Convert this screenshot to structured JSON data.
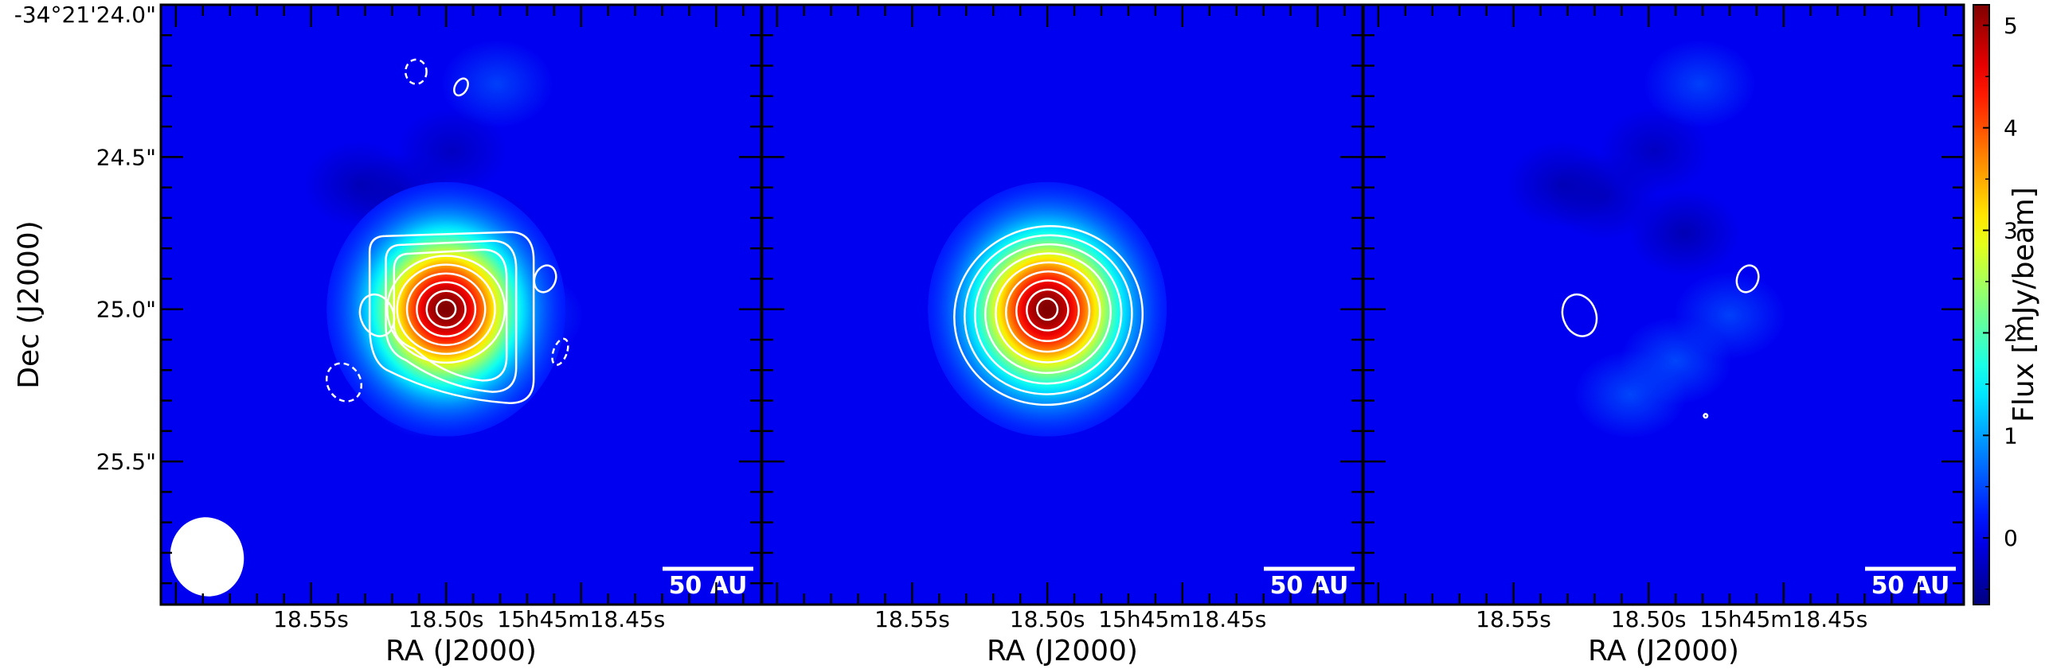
{
  "chart_data": {
    "type": "heatmap",
    "panels": [
      {
        "name": "",
        "source": {
          "ra_offset": 0.0,
          "dec_offset": 0.0,
          "peak": 5.2
        },
        "blobs": [
          {
            "ra": 0.06,
            "dec": -0.28,
            "amp": 0.55
          },
          {
            "ra": -0.09,
            "dec": -0.17,
            "amp": 0.55
          },
          {
            "ra": -0.27,
            "dec": -0.02,
            "amp": 0.5
          },
          {
            "ra": -0.12,
            "dec": 0.25,
            "amp": -0.45
          },
          {
            "ra": 0.29,
            "dec": 0.41,
            "amp": -0.4
          },
          {
            "ra": -0.17,
            "dec": 0.74,
            "amp": 0.5
          },
          {
            "ra": 0.15,
            "dec": 0.37,
            "amp": -0.35
          },
          {
            "ra": -0.02,
            "dec": 0.52,
            "amp": -0.35
          }
        ],
        "contours": [
          {
            "ra": 0.23,
            "dec": -0.02,
            "w": 0.11,
            "h": 0.14,
            "rot": -20,
            "dashed": false
          },
          {
            "ra": -0.33,
            "dec": 0.1,
            "w": 0.07,
            "h": 0.09,
            "rot": 20,
            "dashed": false
          },
          {
            "ra": 0.34,
            "dec": -0.24,
            "w": 0.11,
            "h": 0.13,
            "rot": -30,
            "dashed": true
          },
          {
            "ra": -0.38,
            "dec": -0.14,
            "w": 0.045,
            "h": 0.09,
            "rot": 20,
            "dashed": true
          },
          {
            "ra": 0.1,
            "dec": 0.78,
            "w": 0.07,
            "h": 0.08,
            "rot": 0,
            "dashed": true
          },
          {
            "ra": -0.05,
            "dec": 0.73,
            "w": 0.04,
            "h": 0.06,
            "rot": 30,
            "dashed": false
          }
        ],
        "source_contours": true,
        "beam": true
      },
      {
        "name": "",
        "source": {
          "ra_offset": 0.0,
          "dec_offset": 0.0,
          "peak": 5.2
        },
        "blobs": [],
        "contours": [],
        "source_contours": true,
        "beam": false
      },
      {
        "name": "",
        "source": null,
        "blobs": [
          {
            "ra": 0.06,
            "dec": -0.28,
            "amp": 0.55
          },
          {
            "ra": -0.09,
            "dec": -0.17,
            "amp": 0.55
          },
          {
            "ra": -0.27,
            "dec": -0.02,
            "amp": 0.5
          },
          {
            "ra": -0.12,
            "dec": 0.25,
            "amp": -0.45
          },
          {
            "ra": 0.29,
            "dec": 0.41,
            "amp": -0.4
          },
          {
            "ra": -0.17,
            "dec": 0.74,
            "amp": 0.5
          },
          {
            "ra": 0.15,
            "dec": 0.37,
            "amp": -0.35
          },
          {
            "ra": -0.02,
            "dec": 0.52,
            "amp": -0.35
          }
        ],
        "contours": [
          {
            "ra": 0.23,
            "dec": -0.02,
            "w": 0.11,
            "h": 0.14,
            "rot": -20,
            "dashed": false
          },
          {
            "ra": -0.33,
            "dec": 0.1,
            "w": 0.07,
            "h": 0.09,
            "rot": 20,
            "dashed": false
          },
          {
            "ra": -0.19,
            "dec": -0.35,
            "w": 0.012,
            "h": 0.012,
            "rot": 0,
            "dashed": false
          }
        ],
        "source_contours": false,
        "beam": false
      }
    ],
    "ra_ticks": {
      "labels": [
        "18.55s",
        "18.50s",
        "15h45m18.45s"
      ],
      "offsets_arcsec": [
        0.45,
        0.0,
        -0.45
      ]
    },
    "dec_ticks": {
      "labels": [
        "-34°21'24.0\"",
        "24.5\"",
        "25.0\"",
        "25.5\""
      ],
      "offsets_arcsec": [
        1.0,
        0.5,
        0.0,
        -0.5
      ]
    },
    "xlim_arcsec": [
      0.95,
      -1.05
    ],
    "ylim_arcsec": [
      1.0,
      -0.97
    ],
    "xlabel": "RA (J2000)",
    "ylabel": "Dec (J2000)",
    "colorbar": {
      "label": "Flux [mJy/beam]",
      "range": [
        -0.65,
        5.2
      ],
      "ticks": [
        0,
        1,
        2,
        3,
        4,
        5
      ],
      "colormap": "jet"
    },
    "scalebar": {
      "label": "50 AU"
    },
    "contour_color": "#ffffff"
  }
}
